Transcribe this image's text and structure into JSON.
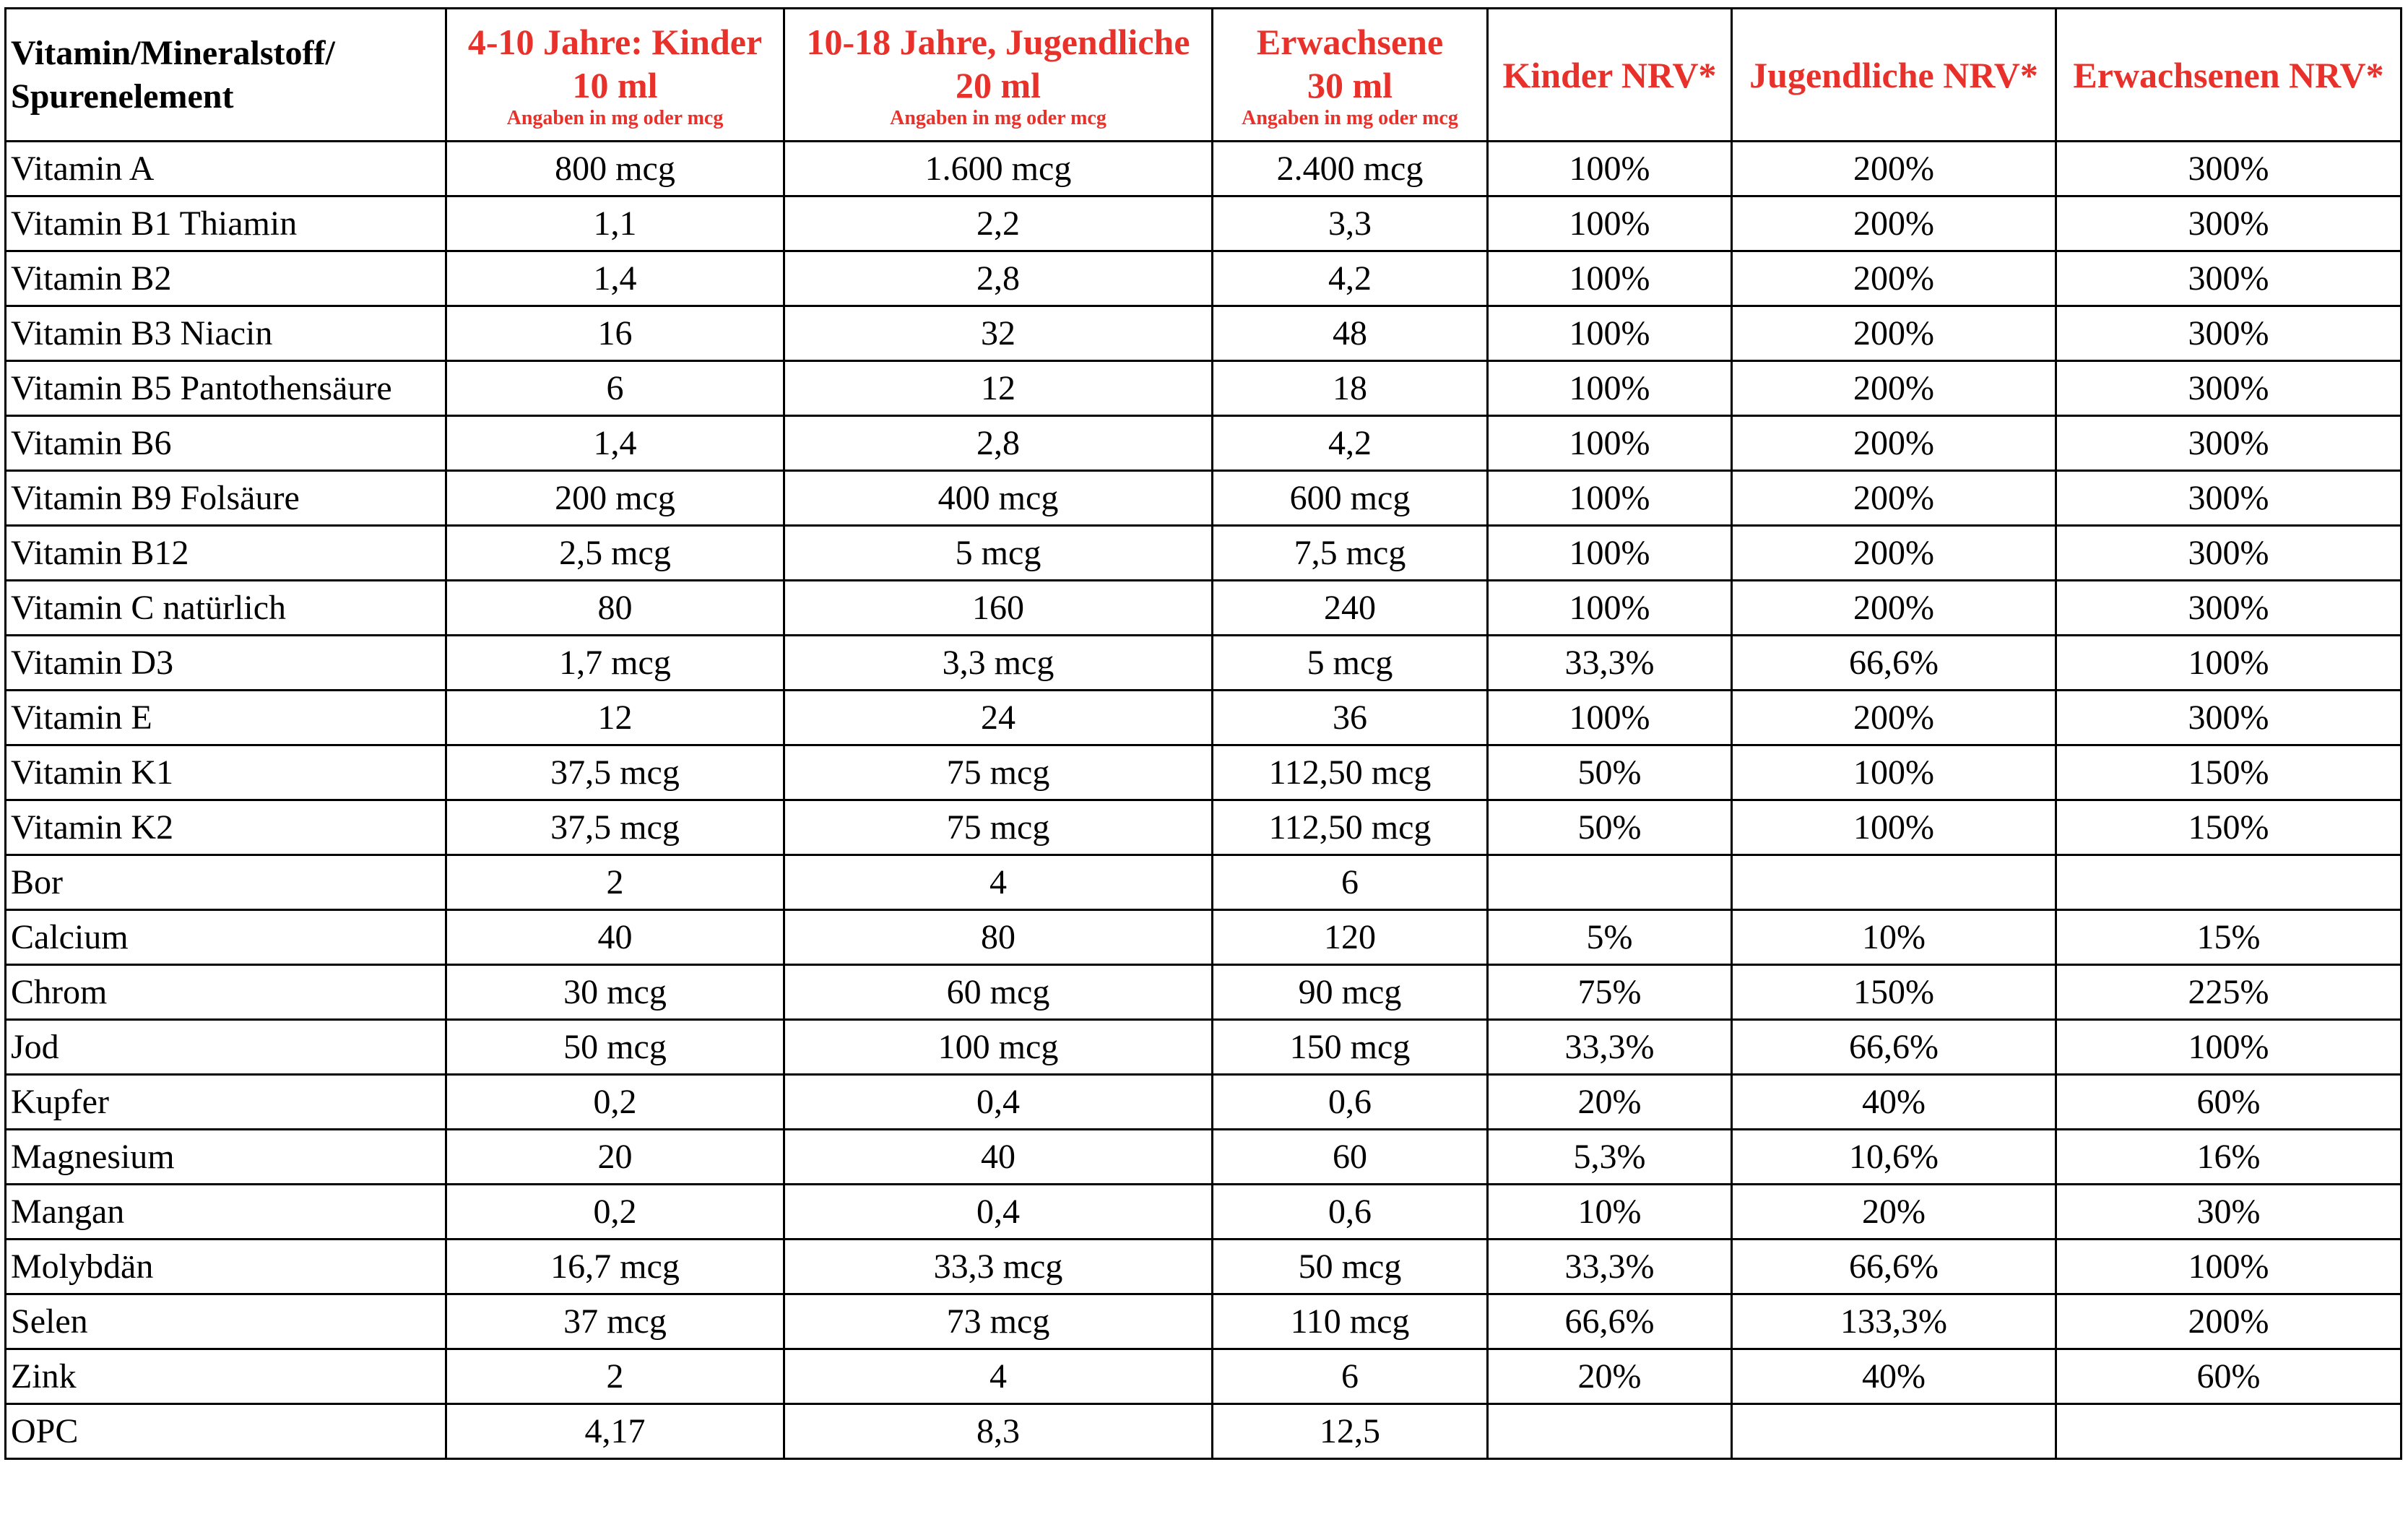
{
  "table": {
    "header": [
      {
        "lines": [
          "Vitamin/Mineralstoff/",
          "Spurenelement"
        ]
      },
      {
        "lines": [
          "4-10 Jahre: Kinder",
          "10 ml"
        ],
        "note": "Angaben in mg oder mcg"
      },
      {
        "lines": [
          "10-18 Jahre, Jugendliche",
          "20 ml"
        ],
        "note": "Angaben in mg oder mcg"
      },
      {
        "lines": [
          "Erwachsene",
          "30 ml"
        ],
        "note": "Angaben in mg oder mcg"
      },
      {
        "lines": [
          "Kinder NRV*"
        ]
      },
      {
        "lines": [
          "Jugendliche NRV*"
        ]
      },
      {
        "lines": [
          "Erwachsenen NRV*"
        ]
      }
    ],
    "rows": [
      [
        "Vitamin A",
        "800 mcg",
        "1.600 mcg",
        "2.400 mcg",
        "100%",
        "200%",
        "300%"
      ],
      [
        "Vitamin B1 Thiamin",
        "1,1",
        "2,2",
        "3,3",
        "100%",
        "200%",
        "300%"
      ],
      [
        "Vitamin B2",
        "1,4",
        "2,8",
        "4,2",
        "100%",
        "200%",
        "300%"
      ],
      [
        "Vitamin B3 Niacin",
        "16",
        "32",
        "48",
        "100%",
        "200%",
        "300%"
      ],
      [
        "Vitamin B5 Pantothensäure",
        "6",
        "12",
        "18",
        "100%",
        "200%",
        "300%"
      ],
      [
        "Vitamin B6",
        "1,4",
        "2,8",
        "4,2",
        "100%",
        "200%",
        "300%"
      ],
      [
        "Vitamin B9 Folsäure",
        "200 mcg",
        "400 mcg",
        "600 mcg",
        "100%",
        "200%",
        "300%"
      ],
      [
        "Vitamin B12",
        "2,5 mcg",
        "5 mcg",
        "7,5 mcg",
        "100%",
        "200%",
        "300%"
      ],
      [
        "Vitamin C natürlich",
        "80",
        "160",
        "240",
        "100%",
        "200%",
        "300%"
      ],
      [
        "Vitamin D3",
        "1,7 mcg",
        "3,3 mcg",
        "5 mcg",
        "33,3%",
        "66,6%",
        "100%"
      ],
      [
        "Vitamin E",
        "12",
        "24",
        "36",
        "100%",
        "200%",
        "300%"
      ],
      [
        "Vitamin K1",
        "37,5 mcg",
        "75 mcg",
        "112,50 mcg",
        "50%",
        "100%",
        "150%"
      ],
      [
        "Vitamin K2",
        "37,5 mcg",
        "75 mcg",
        "112,50 mcg",
        "50%",
        "100%",
        "150%"
      ],
      [
        "Bor",
        "2",
        "4",
        "6",
        null,
        null,
        null
      ],
      [
        "Calcium",
        "40",
        "80",
        "120",
        "5%",
        "10%",
        "15%"
      ],
      [
        "Chrom",
        "30 mcg",
        "60 mcg",
        "90 mcg",
        "75%",
        "150%",
        "225%"
      ],
      [
        "Jod",
        "50 mcg",
        "100 mcg",
        "150 mcg",
        "33,3%",
        "66,6%",
        "100%"
      ],
      [
        "Kupfer",
        "0,2",
        "0,4",
        "0,6",
        "20%",
        "40%",
        "60%"
      ],
      [
        "Magnesium",
        "20",
        "40",
        "60",
        "5,3%",
        "10,6%",
        "16%"
      ],
      [
        "Mangan",
        "0,2",
        "0,4",
        "0,6",
        "10%",
        "20%",
        "30%"
      ],
      [
        "Molybdän",
        "16,7 mcg",
        "33,3 mcg",
        "50 mcg",
        "33,3%",
        "66,6%",
        "100%"
      ],
      [
        "Selen",
        "37 mcg",
        "73 mcg",
        "110 mcg",
        "66,6%",
        "133,3%",
        "200%"
      ],
      [
        "Zink",
        "2",
        "4",
        "6",
        "20%",
        "40%",
        "60%"
      ],
      [
        "OPC",
        "4,17",
        "8,3",
        "12,5",
        null,
        null,
        null
      ]
    ]
  }
}
